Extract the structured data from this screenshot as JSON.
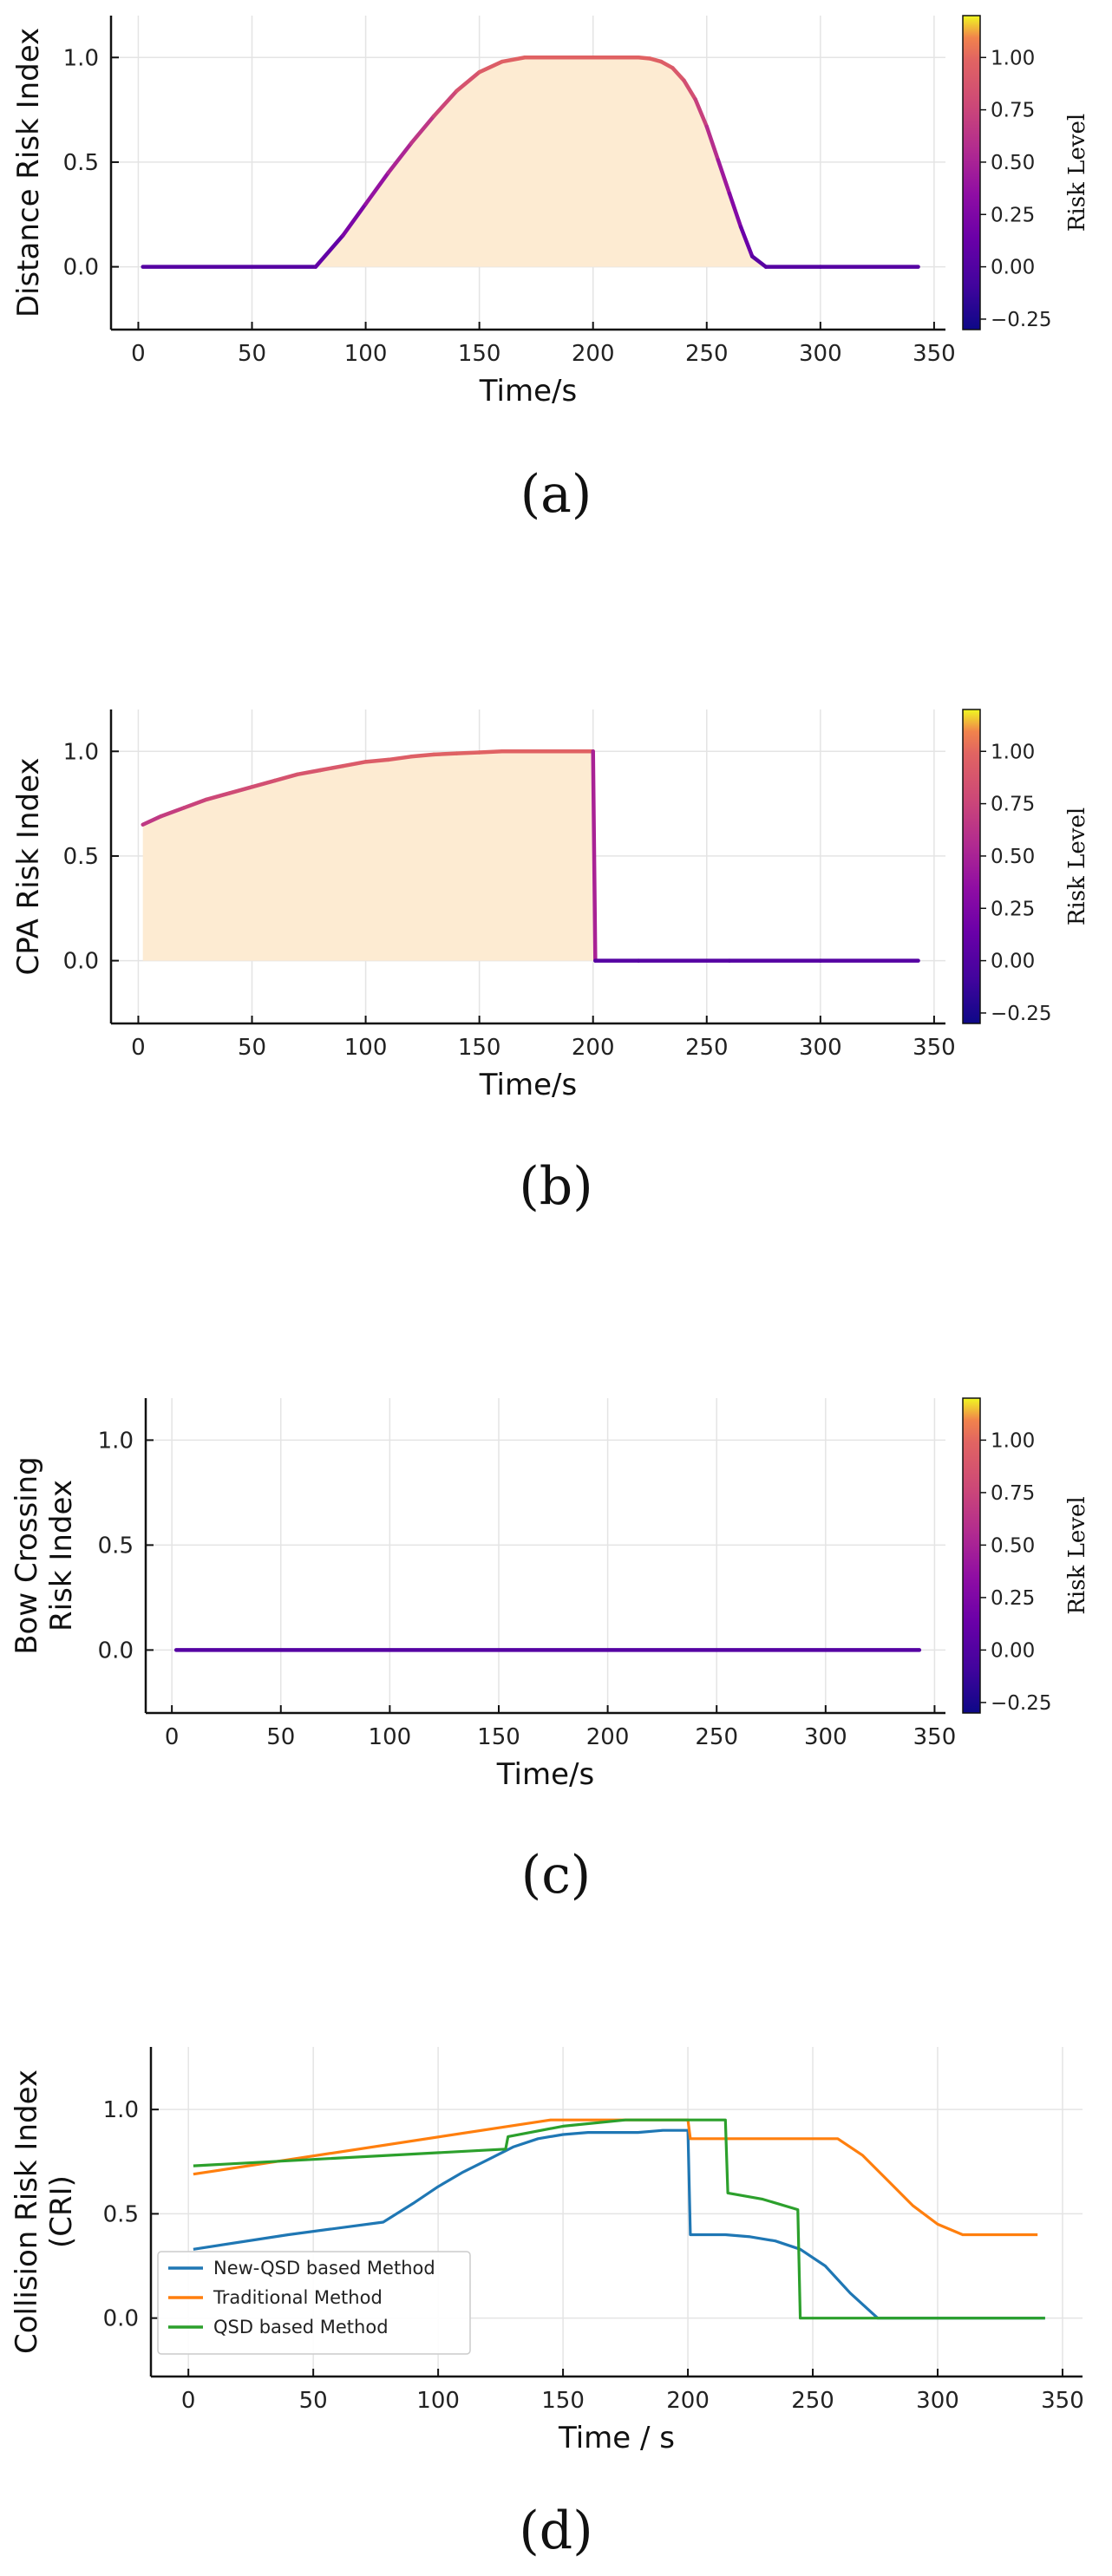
{
  "chart_data": [
    {
      "type": "line",
      "panel": "a",
      "caption": "(a)",
      "xlabel": "Time/s",
      "ylabel": [
        "Distance Risk Index"
      ],
      "xlim": [
        -12,
        355
      ],
      "ylim": [
        -0.3,
        1.2
      ],
      "xticks": [
        0,
        50,
        100,
        150,
        200,
        250,
        300,
        350
      ],
      "yticks": [
        0.0,
        0.5,
        1.0
      ],
      "grid": true,
      "fill_under": true,
      "colorbar": {
        "label": "Risk Level",
        "range": [
          -0.3,
          1.2
        ],
        "ticks": [
          -0.25,
          0.0,
          0.25,
          0.5,
          0.75,
          1.0
        ]
      },
      "series": [
        {
          "x": [
            2,
            78,
            90,
            100,
            110,
            120,
            130,
            140,
            150,
            160,
            170,
            180,
            190,
            200,
            210,
            220,
            225,
            230,
            235,
            240,
            245,
            250,
            255,
            260,
            265,
            270,
            276,
            300,
            343
          ],
          "y": [
            0,
            0,
            0.15,
            0.3,
            0.45,
            0.59,
            0.72,
            0.84,
            0.93,
            0.98,
            1.0,
            1.0,
            1.0,
            1.0,
            1.0,
            1.0,
            0.995,
            0.98,
            0.95,
            0.89,
            0.8,
            0.67,
            0.51,
            0.35,
            0.19,
            0.05,
            0,
            0,
            0
          ]
        }
      ]
    },
    {
      "type": "line",
      "panel": "b",
      "caption": "(b)",
      "xlabel": "Time/s",
      "ylabel": [
        "CPA Risk Index"
      ],
      "xlim": [
        -12,
        355
      ],
      "ylim": [
        -0.3,
        1.2
      ],
      "xticks": [
        0,
        50,
        100,
        150,
        200,
        250,
        300,
        350
      ],
      "yticks": [
        0.0,
        0.5,
        1.0
      ],
      "grid": true,
      "fill_under": true,
      "colorbar": {
        "label": "Risk Level",
        "range": [
          -0.3,
          1.2
        ],
        "ticks": [
          -0.25,
          0.0,
          0.25,
          0.5,
          0.75,
          1.0
        ]
      },
      "series": [
        {
          "x": [
            2,
            10,
            20,
            30,
            40,
            50,
            60,
            70,
            80,
            90,
            100,
            110,
            120,
            130,
            140,
            150,
            160,
            170,
            180,
            190,
            200,
            201,
            220,
            260,
            300,
            343
          ],
          "y": [
            0.65,
            0.69,
            0.73,
            0.77,
            0.8,
            0.83,
            0.86,
            0.89,
            0.91,
            0.93,
            0.95,
            0.96,
            0.975,
            0.985,
            0.99,
            0.995,
            1.0,
            1.0,
            1.0,
            1.0,
            1.0,
            0,
            0,
            0,
            0,
            0
          ]
        }
      ]
    },
    {
      "type": "line",
      "panel": "c",
      "caption": "(c)",
      "xlabel": "Time/s",
      "ylabel": [
        "Bow Crossing",
        "Risk Index"
      ],
      "xlim": [
        -12,
        355
      ],
      "ylim": [
        -0.3,
        1.2
      ],
      "xticks": [
        0,
        50,
        100,
        150,
        200,
        250,
        300,
        350
      ],
      "yticks": [
        0.0,
        0.5,
        1.0
      ],
      "grid": true,
      "fill_under": false,
      "colorbar": {
        "label": "Risk Level",
        "range": [
          -0.3,
          1.2
        ],
        "ticks": [
          -0.25,
          0.0,
          0.25,
          0.5,
          0.75,
          1.0
        ]
      },
      "series": [
        {
          "x": [
            2,
            343
          ],
          "y": [
            0,
            0
          ]
        }
      ]
    },
    {
      "type": "line",
      "panel": "d",
      "caption": "(d)",
      "xlabel": "Time / s",
      "ylabel": [
        "Collision Risk Index",
        "(CRI)"
      ],
      "xlim": [
        -15,
        358
      ],
      "ylim": [
        -0.28,
        1.3
      ],
      "xticks": [
        0,
        50,
        100,
        150,
        200,
        250,
        300,
        350
      ],
      "yticks": [
        0.0,
        0.5,
        1.0
      ],
      "grid": true,
      "legend": "lower-left",
      "series": [
        {
          "name": "New-QSD based Method",
          "color": "#1f77b4",
          "x": [
            2,
            40,
            78,
            90,
            100,
            110,
            120,
            130,
            140,
            150,
            160,
            170,
            180,
            190,
            200,
            201,
            215,
            225,
            235,
            245,
            255,
            265,
            276,
            300,
            343
          ],
          "y": [
            0.33,
            0.4,
            0.46,
            0.55,
            0.63,
            0.7,
            0.76,
            0.82,
            0.86,
            0.88,
            0.89,
            0.89,
            0.89,
            0.9,
            0.9,
            0.4,
            0.4,
            0.39,
            0.37,
            0.33,
            0.25,
            0.12,
            0,
            0,
            0
          ]
        },
        {
          "name": "Traditional Method",
          "color": "#ff7f0e",
          "x": [
            2,
            145,
            175,
            200,
            201,
            230,
            260,
            270,
            280,
            290,
            300,
            310,
            340
          ],
          "y": [
            0.69,
            0.95,
            0.95,
            0.95,
            0.86,
            0.86,
            0.86,
            0.78,
            0.66,
            0.54,
            0.45,
            0.4,
            0.4
          ]
        },
        {
          "name": "QSD based Method",
          "color": "#2ca02c",
          "x": [
            2,
            127,
            128,
            150,
            175,
            200,
            215,
            216,
            230,
            244,
            245,
            300,
            343
          ],
          "y": [
            0.73,
            0.81,
            0.87,
            0.92,
            0.95,
            0.95,
            0.95,
            0.6,
            0.57,
            0.52,
            0,
            0,
            0
          ]
        }
      ]
    }
  ]
}
